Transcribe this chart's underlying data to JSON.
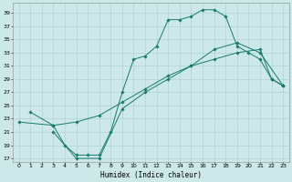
{
  "xlabel": "Humidex (Indice chaleur)",
  "bg_color": "#cce8e8",
  "grid_color": "#aacccc",
  "line_color": "#1a7a6e",
  "line1_x": [
    1,
    3,
    4,
    5,
    6,
    7,
    8,
    9,
    10,
    11,
    12,
    13,
    14,
    15,
    16,
    17,
    18,
    19,
    20,
    21,
    22,
    23
  ],
  "line1_y": [
    24,
    22,
    19,
    17.5,
    17.5,
    17.5,
    21,
    27,
    32,
    32.5,
    34,
    38,
    38,
    38.5,
    39.5,
    39.5,
    38.5,
    34,
    33,
    32,
    29,
    28
  ],
  "line2_x": [
    0,
    3,
    5,
    7,
    9,
    11,
    13,
    15,
    17,
    19,
    21,
    22,
    23
  ],
  "line2_y": [
    22.5,
    22,
    22.5,
    23.5,
    25.5,
    27.5,
    29.5,
    31,
    32,
    33,
    33.5,
    29,
    28
  ],
  "line3_x": [
    3,
    5,
    7,
    9,
    11,
    13,
    15,
    17,
    19,
    21,
    23
  ],
  "line3_y": [
    21,
    17,
    17,
    24.5,
    27,
    29,
    31,
    33.5,
    34.5,
    33,
    28
  ],
  "xlim": [
    -0.5,
    23.5
  ],
  "ylim": [
    16.5,
    40.5
  ],
  "yticks": [
    17,
    19,
    21,
    23,
    25,
    27,
    29,
    31,
    33,
    35,
    37,
    39
  ],
  "xticks": [
    0,
    1,
    2,
    3,
    4,
    5,
    6,
    7,
    8,
    9,
    10,
    11,
    12,
    13,
    14,
    15,
    16,
    17,
    18,
    19,
    20,
    21,
    22,
    23
  ]
}
